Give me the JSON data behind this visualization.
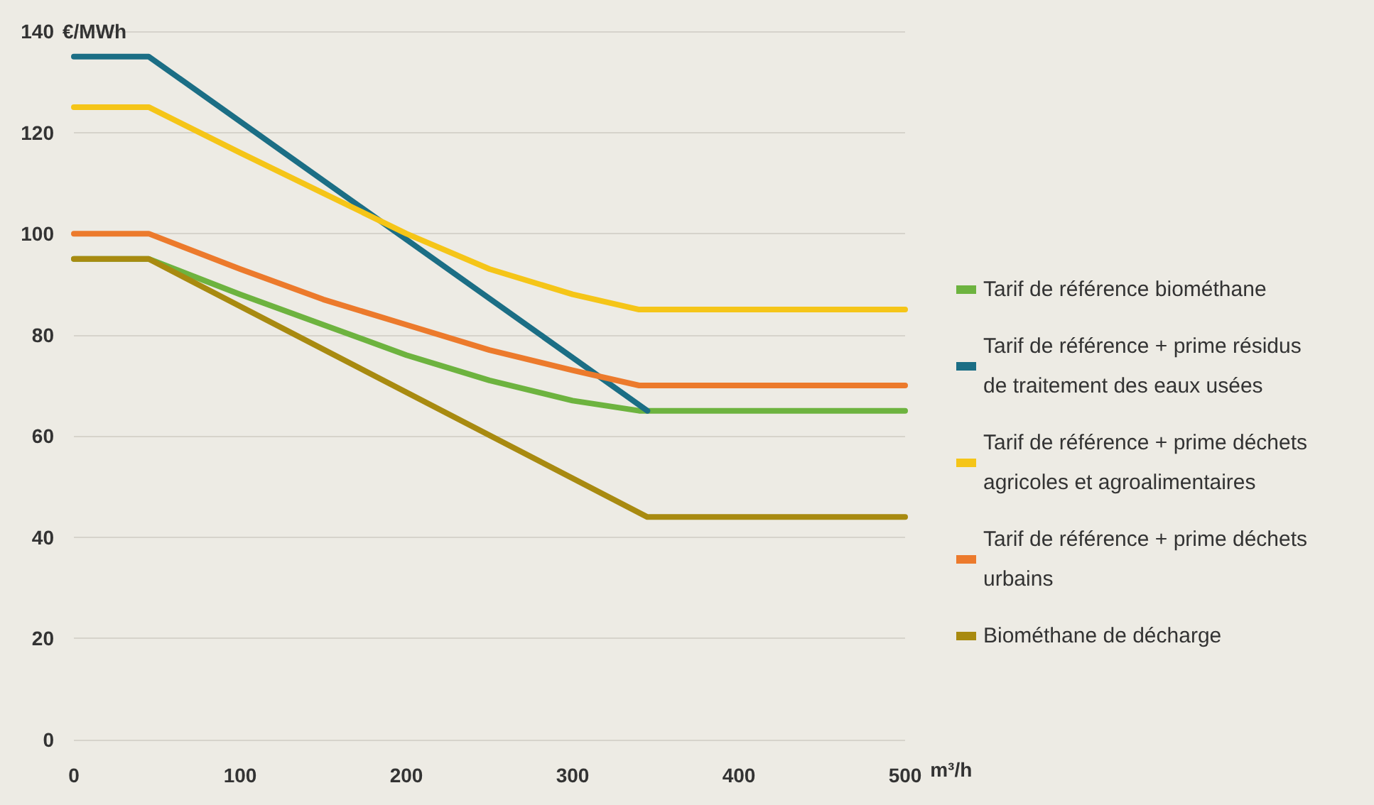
{
  "chart_data": {
    "type": "line",
    "xlabel": "m³/h",
    "ylabel": "€/MWh",
    "xlim": [
      0,
      500
    ],
    "xticks": [
      0,
      100,
      200,
      300,
      400,
      500
    ],
    "ylim": [
      0,
      140
    ],
    "yticks": [
      0,
      20,
      40,
      60,
      80,
      100,
      120,
      140
    ],
    "grid": "y",
    "legend": "right",
    "marker": "none",
    "line_style": "solid",
    "series": [
      {
        "name": "Tarif de référence biométhane",
        "color": "#6db33f",
        "x": [
          0,
          45,
          100,
          150,
          200,
          250,
          300,
          340,
          500
        ],
        "values": [
          95,
          95,
          88,
          82,
          76,
          71,
          67,
          65,
          65
        ]
      },
      {
        "name": "Tarif de référence + prime résidus de traitement des eaux usées",
        "color": "#1b6e85",
        "x": [
          0,
          45,
          345
        ],
        "values": [
          135,
          135,
          65
        ]
      },
      {
        "name": "Tarif de référence + prime déchets agricoles et agroalimentaires",
        "color": "#f5c518",
        "x": [
          0,
          45,
          100,
          150,
          200,
          250,
          300,
          340,
          500
        ],
        "values": [
          125,
          125,
          116,
          108,
          100,
          93,
          88,
          85,
          85
        ]
      },
      {
        "name": "Tarif de référence + prime déchets urbains",
        "color": "#ec7a2c",
        "x": [
          0,
          45,
          100,
          150,
          200,
          250,
          300,
          340,
          500
        ],
        "values": [
          100,
          100,
          93,
          87,
          82,
          77,
          73,
          70,
          70
        ]
      },
      {
        "name": "Biométhane de décharge",
        "color": "#a88a10",
        "x": [
          0,
          45,
          345,
          500
        ],
        "values": [
          95,
          95,
          44,
          44
        ]
      }
    ]
  }
}
